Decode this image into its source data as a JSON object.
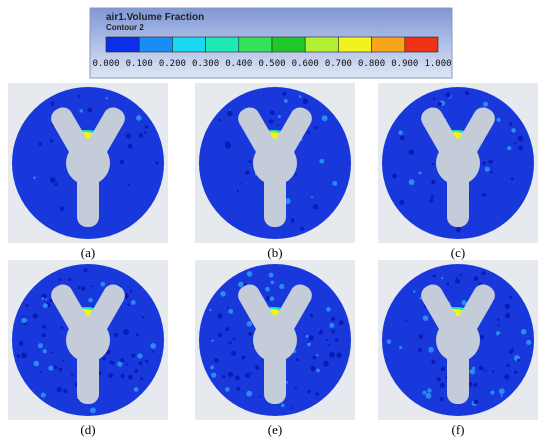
{
  "legend": {
    "title": "air1.Volume Fraction",
    "subtitle": "Contour 2",
    "ticks": [
      "0.000",
      "0.100",
      "0.200",
      "0.300",
      "0.400",
      "0.500",
      "0.600",
      "0.700",
      "0.800",
      "0.900",
      "1.000"
    ],
    "colors": [
      "#0b2fe6",
      "#1a8cf5",
      "#19d9f2",
      "#1ee8b4",
      "#35e05a",
      "#20c82a",
      "#b4f032",
      "#f2f21e",
      "#f7a41c",
      "#f03214"
    ]
  },
  "panels": [
    {
      "label": "(a)"
    },
    {
      "label": "(b)"
    },
    {
      "label": "(c)"
    },
    {
      "label": "(d)"
    },
    {
      "label": "(e)"
    },
    {
      "label": "(f)"
    }
  ]
}
